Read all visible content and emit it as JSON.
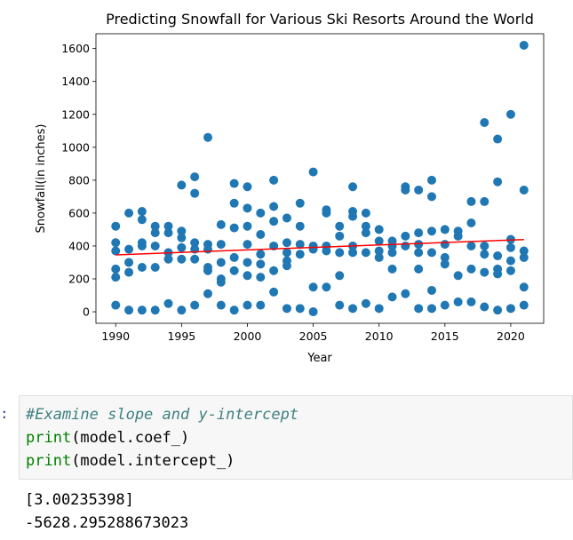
{
  "chart_data": {
    "type": "scatter",
    "title": "Predicting Snowfall for Various Ski Resorts Around the World",
    "xlabel": "Year",
    "ylabel": "Snowfall(in inches)",
    "xlim": [
      1988.5,
      2022.5
    ],
    "ylim": [
      -70,
      1690
    ],
    "xticks": [
      1990,
      1995,
      2000,
      2005,
      2010,
      2015,
      2020
    ],
    "yticks": [
      0,
      200,
      400,
      600,
      800,
      1000,
      1200,
      1400,
      1600
    ],
    "grid": false,
    "colors": {
      "points": "#1f77b4",
      "line": "#ff0000"
    },
    "regression_line": {
      "x": [
        1990,
        2021
      ],
      "y": [
        346,
        439
      ]
    },
    "points": [
      [
        1990,
        520
      ],
      [
        1990,
        420
      ],
      [
        1990,
        370
      ],
      [
        1990,
        260
      ],
      [
        1990,
        210
      ],
      [
        1990,
        40
      ],
      [
        1991,
        600
      ],
      [
        1991,
        380
      ],
      [
        1991,
        300
      ],
      [
        1991,
        240
      ],
      [
        1991,
        10
      ],
      [
        1992,
        610
      ],
      [
        1992,
        560
      ],
      [
        1992,
        420
      ],
      [
        1992,
        400
      ],
      [
        1992,
        270
      ],
      [
        1992,
        10
      ],
      [
        1993,
        520
      ],
      [
        1993,
        480
      ],
      [
        1993,
        400
      ],
      [
        1993,
        270
      ],
      [
        1993,
        10
      ],
      [
        1994,
        520
      ],
      [
        1994,
        480
      ],
      [
        1994,
        360
      ],
      [
        1994,
        320
      ],
      [
        1994,
        50
      ],
      [
        1995,
        770
      ],
      [
        1995,
        490
      ],
      [
        1995,
        450
      ],
      [
        1995,
        390
      ],
      [
        1995,
        320
      ],
      [
        1995,
        10
      ],
      [
        1996,
        820
      ],
      [
        1996,
        720
      ],
      [
        1996,
        420
      ],
      [
        1996,
        380
      ],
      [
        1996,
        320
      ],
      [
        1996,
        40
      ],
      [
        1997,
        1060
      ],
      [
        1997,
        410
      ],
      [
        1997,
        380
      ],
      [
        1997,
        270
      ],
      [
        1997,
        250
      ],
      [
        1997,
        110
      ],
      [
        1998,
        530
      ],
      [
        1998,
        410
      ],
      [
        1998,
        300
      ],
      [
        1998,
        200
      ],
      [
        1998,
        180
      ],
      [
        1998,
        40
      ],
      [
        1999,
        780
      ],
      [
        1999,
        660
      ],
      [
        1999,
        510
      ],
      [
        1999,
        330
      ],
      [
        1999,
        250
      ],
      [
        1999,
        10
      ],
      [
        2000,
        760
      ],
      [
        2000,
        630
      ],
      [
        2000,
        520
      ],
      [
        2000,
        410
      ],
      [
        2000,
        300
      ],
      [
        2000,
        220
      ],
      [
        2000,
        40
      ],
      [
        2001,
        600
      ],
      [
        2001,
        470
      ],
      [
        2001,
        350
      ],
      [
        2001,
        290
      ],
      [
        2001,
        210
      ],
      [
        2001,
        40
      ],
      [
        2002,
        800
      ],
      [
        2002,
        640
      ],
      [
        2002,
        550
      ],
      [
        2002,
        400
      ],
      [
        2002,
        250
      ],
      [
        2002,
        120
      ],
      [
        2003,
        570
      ],
      [
        2003,
        420
      ],
      [
        2003,
        360
      ],
      [
        2003,
        310
      ],
      [
        2003,
        280
      ],
      [
        2003,
        20
      ],
      [
        2004,
        660
      ],
      [
        2004,
        520
      ],
      [
        2004,
        410
      ],
      [
        2004,
        350
      ],
      [
        2004,
        20
      ],
      [
        2005,
        850
      ],
      [
        2005,
        400
      ],
      [
        2005,
        380
      ],
      [
        2005,
        150
      ],
      [
        2005,
        0
      ],
      [
        2006,
        620
      ],
      [
        2006,
        600
      ],
      [
        2006,
        400
      ],
      [
        2006,
        370
      ],
      [
        2006,
        150
      ],
      [
        2007,
        520
      ],
      [
        2007,
        460
      ],
      [
        2007,
        360
      ],
      [
        2007,
        220
      ],
      [
        2007,
        40
      ],
      [
        2008,
        760
      ],
      [
        2008,
        610
      ],
      [
        2008,
        580
      ],
      [
        2008,
        400
      ],
      [
        2008,
        360
      ],
      [
        2008,
        20
      ],
      [
        2009,
        600
      ],
      [
        2009,
        520
      ],
      [
        2009,
        480
      ],
      [
        2009,
        360
      ],
      [
        2009,
        50
      ],
      [
        2010,
        500
      ],
      [
        2010,
        430
      ],
      [
        2010,
        370
      ],
      [
        2010,
        330
      ],
      [
        2010,
        20
      ],
      [
        2011,
        430
      ],
      [
        2011,
        400
      ],
      [
        2011,
        360
      ],
      [
        2011,
        260
      ],
      [
        2011,
        90
      ],
      [
        2012,
        760
      ],
      [
        2012,
        740
      ],
      [
        2012,
        460
      ],
      [
        2012,
        400
      ],
      [
        2012,
        110
      ],
      [
        2013,
        740
      ],
      [
        2013,
        480
      ],
      [
        2013,
        410
      ],
      [
        2013,
        360
      ],
      [
        2013,
        260
      ],
      [
        2013,
        20
      ],
      [
        2014,
        800
      ],
      [
        2014,
        700
      ],
      [
        2014,
        490
      ],
      [
        2014,
        360
      ],
      [
        2014,
        130
      ],
      [
        2014,
        20
      ],
      [
        2015,
        500
      ],
      [
        2015,
        410
      ],
      [
        2015,
        330
      ],
      [
        2015,
        290
      ],
      [
        2015,
        40
      ],
      [
        2016,
        490
      ],
      [
        2016,
        460
      ],
      [
        2016,
        220
      ],
      [
        2016,
        60
      ],
      [
        2017,
        670
      ],
      [
        2017,
        540
      ],
      [
        2017,
        400
      ],
      [
        2017,
        260
      ],
      [
        2017,
        60
      ],
      [
        2018,
        1150
      ],
      [
        2018,
        670
      ],
      [
        2018,
        400
      ],
      [
        2018,
        350
      ],
      [
        2018,
        240
      ],
      [
        2018,
        30
      ],
      [
        2019,
        1050
      ],
      [
        2019,
        790
      ],
      [
        2019,
        340
      ],
      [
        2019,
        260
      ],
      [
        2019,
        230
      ],
      [
        2019,
        10
      ],
      [
        2020,
        1200
      ],
      [
        2020,
        440
      ],
      [
        2020,
        390
      ],
      [
        2020,
        310
      ],
      [
        2020,
        250
      ],
      [
        2020,
        20
      ],
      [
        2021,
        1620
      ],
      [
        2021,
        740
      ],
      [
        2021,
        370
      ],
      [
        2021,
        330
      ],
      [
        2021,
        150
      ],
      [
        2021,
        40
      ]
    ]
  },
  "cell": {
    "prompt": ":",
    "lines": {
      "line1": "#Examine slope and y-intercept",
      "line2_fn": "print",
      "line2_arg": "(model.coef_)",
      "line3_fn": "print",
      "line3_arg": "(model.intercept_)"
    },
    "output": {
      "coef": "[3.00235398]",
      "intercept": "-5628.295288673023"
    }
  }
}
